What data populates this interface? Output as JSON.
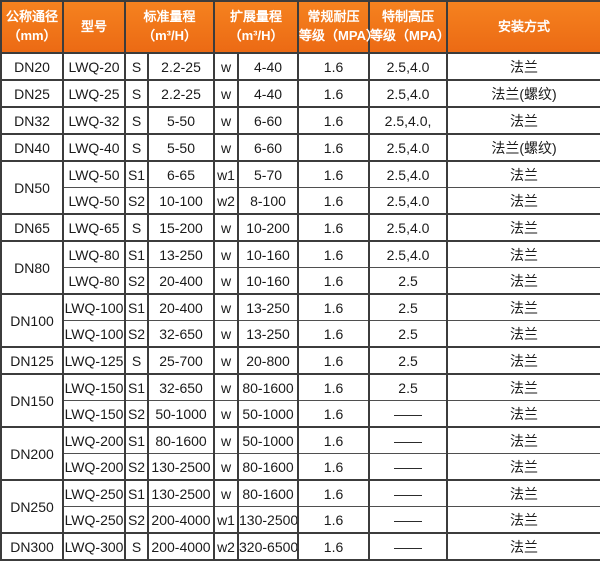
{
  "colors": {
    "header_bg_top": "#f5821f",
    "header_bg_bottom": "#ec6a14",
    "header_text": "#ffffff",
    "border": "#3c3c3c",
    "body_text": "#1a1a1a"
  },
  "table": {
    "header": [
      {
        "id": "diameter",
        "span": 1,
        "lines": [
          "公称通径",
          "（mm）"
        ]
      },
      {
        "id": "model",
        "span": 1,
        "lines": [
          "型号"
        ]
      },
      {
        "id": "standard-range",
        "span": 2,
        "lines": [
          "标准量程",
          "（m³/H）"
        ]
      },
      {
        "id": "extended-range",
        "span": 2,
        "lines": [
          "扩展量程",
          "（m³/H）"
        ]
      },
      {
        "id": "pressure-rating",
        "span": 1,
        "lines": [
          "常规耐压",
          "等级（MPA）"
        ]
      },
      {
        "id": "high-pressure-rating",
        "span": 1,
        "lines": [
          "特制高压",
          "等级（MPA）"
        ]
      },
      {
        "id": "installation",
        "span": 1,
        "lines": [
          "安装方式"
        ]
      }
    ],
    "groups": [
      {
        "diameter": "DN20",
        "rows": [
          {
            "model": "LWQ-20",
            "s": "S",
            "std": "2.2-25",
            "w": "w",
            "ext": "4-40",
            "pressure": "1.6",
            "high": "2.5,4.0",
            "install": "法兰"
          }
        ]
      },
      {
        "diameter": "DN25",
        "rows": [
          {
            "model": "LWQ-25",
            "s": "S",
            "std": "2.2-25",
            "w": "w",
            "ext": "4-40",
            "pressure": "1.6",
            "high": "2.5,4.0",
            "install": "法兰(螺纹)"
          }
        ]
      },
      {
        "diameter": "DN32",
        "rows": [
          {
            "model": "LWQ-32",
            "s": "S",
            "std": "5-50",
            "w": "w",
            "ext": "6-60",
            "pressure": "1.6",
            "high": "2.5,4.0,",
            "install": "法兰"
          }
        ]
      },
      {
        "diameter": "DN40",
        "rows": [
          {
            "model": "LWQ-40",
            "s": "S",
            "std": "5-50",
            "w": "w",
            "ext": "6-60",
            "pressure": "1.6",
            "high": "2.5,4.0",
            "install": "法兰(螺纹)"
          }
        ]
      },
      {
        "diameter": "DN50",
        "rows": [
          {
            "model": "LWQ-50",
            "s": "S1",
            "std": "6-65",
            "w": "w1",
            "ext": "5-70",
            "pressure": "1.6",
            "high": "2.5,4.0",
            "install": "法兰"
          },
          {
            "model": "LWQ-50",
            "s": "S2",
            "std": "10-100",
            "w": "w2",
            "ext": "8-100",
            "pressure": "1.6",
            "high": "2.5,4.0",
            "install": "法兰"
          }
        ]
      },
      {
        "diameter": "DN65",
        "rows": [
          {
            "model": "LWQ-65",
            "s": "S",
            "std": "15-200",
            "w": "w",
            "ext": "10-200",
            "pressure": "1.6",
            "high": "2.5,4.0",
            "install": "法兰"
          }
        ]
      },
      {
        "diameter": "DN80",
        "rows": [
          {
            "model": "LWQ-80",
            "s": "S1",
            "std": "13-250",
            "w": "w",
            "ext": "10-160",
            "pressure": "1.6",
            "high": "2.5,4.0",
            "install": "法兰"
          },
          {
            "model": "LWQ-80",
            "s": "S2",
            "std": "20-400",
            "w": "w",
            "ext": "10-160",
            "pressure": "1.6",
            "high": "2.5",
            "install": "法兰"
          }
        ]
      },
      {
        "diameter": "DN100",
        "rows": [
          {
            "model": "LWQ-100",
            "s": "S1",
            "std": "20-400",
            "w": "w",
            "ext": "13-250",
            "pressure": "1.6",
            "high": "2.5",
            "install": "法兰"
          },
          {
            "model": "LWQ-100",
            "s": "S2",
            "std": "32-650",
            "w": "w",
            "ext": "13-250",
            "pressure": "1.6",
            "high": "2.5",
            "install": "法兰"
          }
        ]
      },
      {
        "diameter": "DN125",
        "rows": [
          {
            "model": "LWQ-125",
            "s": "S",
            "std": "25-700",
            "w": "w",
            "ext": "20-800",
            "pressure": "1.6",
            "high": "2.5",
            "install": "法兰"
          }
        ]
      },
      {
        "diameter": "DN150",
        "rows": [
          {
            "model": "LWQ-150",
            "s": "S1",
            "std": "32-650",
            "w": "w",
            "ext": "80-1600",
            "pressure": "1.6",
            "high": "2.5",
            "install": "法兰"
          },
          {
            "model": "LWQ-150",
            "s": "S2",
            "std": "50-1000",
            "w": "w",
            "ext": "50-1000",
            "pressure": "1.6",
            "high": "——",
            "install": "法兰"
          }
        ]
      },
      {
        "diameter": "DN200",
        "rows": [
          {
            "model": "LWQ-200",
            "s": "S1",
            "std": "80-1600",
            "w": "w",
            "ext": "50-1000",
            "pressure": "1.6",
            "high": "——",
            "install": "法兰"
          },
          {
            "model": "LWQ-200",
            "s": "S2",
            "std": "130-2500",
            "w": "w",
            "ext": "80-1600",
            "pressure": "1.6",
            "high": "——",
            "install": "法兰"
          }
        ]
      },
      {
        "diameter": "DN250",
        "rows": [
          {
            "model": "LWQ-250",
            "s": "S1",
            "std": "130-2500",
            "w": "w",
            "ext": "80-1600",
            "pressure": "1.6",
            "high": "——",
            "install": "法兰"
          },
          {
            "model": "LWQ-250",
            "s": "S2",
            "std": "200-4000",
            "w": "w1",
            "ext": "130-2500",
            "pressure": "1.6",
            "high": "——",
            "install": "法兰"
          }
        ]
      },
      {
        "diameter": "DN300",
        "rows": [
          {
            "model": "LWQ-300",
            "s": "S",
            "std": "200-4000",
            "w": "w2",
            "ext": "320-6500",
            "pressure": "1.6",
            "high": "——",
            "install": "法兰"
          }
        ]
      }
    ]
  }
}
